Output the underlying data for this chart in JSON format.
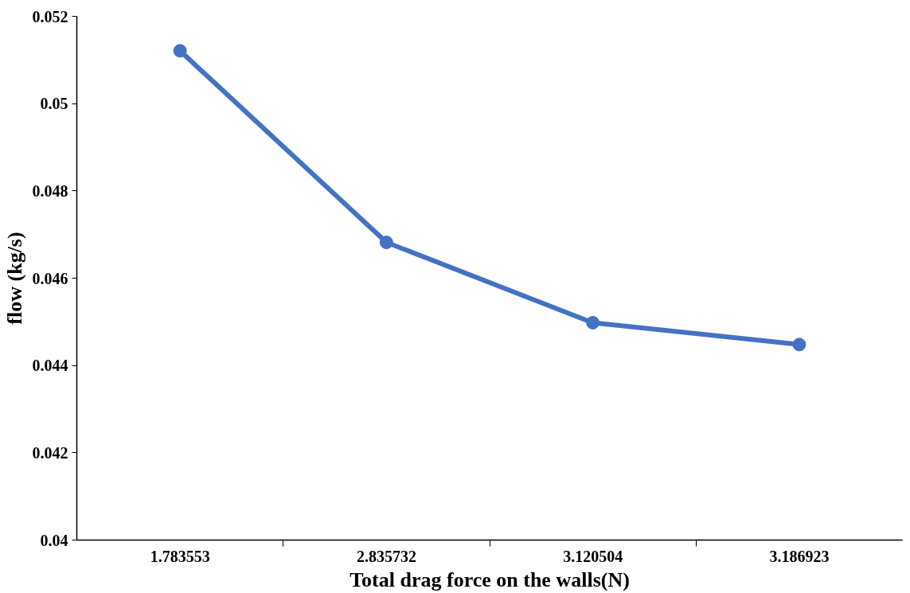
{
  "chart_data": {
    "type": "line",
    "xlabel": "Total drag force on the walls(N)",
    "ylabel": "flow (kg/s)",
    "categories": [
      "1.783553",
      "2.835732",
      "3.120504",
      "3.186923"
    ],
    "series": [
      {
        "color": "#4472c4",
        "values": [
          0.05121,
          0.04682,
          0.04498,
          0.04448
        ]
      }
    ],
    "ylim": [
      0.04,
      0.052
    ],
    "yticks": [
      0.04,
      0.042,
      0.044,
      0.046,
      0.048,
      0.05,
      0.052
    ],
    "grid": false,
    "marker": "circle",
    "line_style": "solid"
  }
}
